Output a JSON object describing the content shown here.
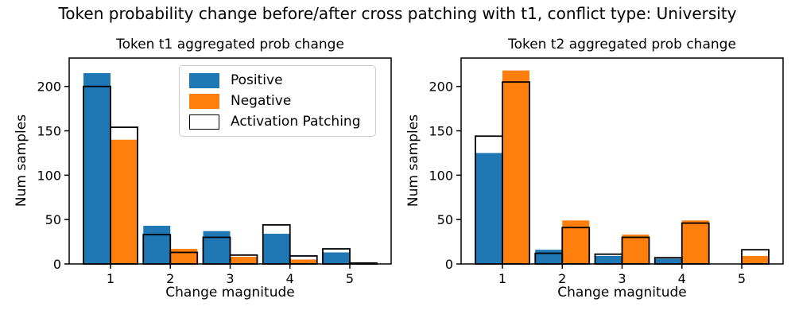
{
  "suptitle": "Token probability change before/after cross patching with t1, conflict type: University",
  "colors": {
    "positive": "#1f77b4",
    "negative": "#ff7f0e",
    "activation_patching_edge": "#000000",
    "axes": "#000000",
    "background": "#ffffff",
    "legend_border": "#cccccc"
  },
  "legend": {
    "items": [
      {
        "label": "Positive"
      },
      {
        "label": "Negative"
      },
      {
        "label": "Activation Patching"
      }
    ]
  },
  "chart_data": [
    {
      "type": "bar",
      "title": "Token t1 aggregated prob change",
      "xlabel": "Change magnitude",
      "ylabel": "Num samples",
      "categories": [
        1,
        2,
        3,
        4,
        5
      ],
      "yticks": [
        0,
        50,
        100,
        150,
        200
      ],
      "ylim": [
        0,
        232
      ],
      "grid": false,
      "legend_position": "upper right inside",
      "series": [
        {
          "name": "Positive",
          "slot": "left",
          "style": "fill",
          "color": "positive",
          "values": [
            215,
            43,
            37,
            34,
            13
          ]
        },
        {
          "name": "Negative",
          "slot": "right",
          "style": "fill",
          "color": "negative",
          "values": [
            140,
            17,
            8,
            5,
            1
          ]
        },
        {
          "name": "Activation Patching",
          "slot": "left",
          "style": "outline",
          "values": [
            200,
            33,
            30,
            44,
            17
          ]
        },
        {
          "name": "Activation Patching",
          "slot": "right",
          "style": "outline",
          "values": [
            154,
            13,
            10,
            9,
            1
          ]
        }
      ]
    },
    {
      "type": "bar",
      "title": "Token t2 aggregated prob change",
      "xlabel": "Change magnitude",
      "ylabel": "Num samples",
      "categories": [
        1,
        2,
        3,
        4,
        5
      ],
      "yticks": [
        0,
        50,
        100,
        150,
        200
      ],
      "ylim": [
        0,
        232
      ],
      "grid": false,
      "series": [
        {
          "name": "Positive",
          "slot": "left",
          "style": "fill",
          "color": "positive",
          "values": [
            125,
            16,
            9,
            6,
            0
          ]
        },
        {
          "name": "Negative",
          "slot": "right",
          "style": "fill",
          "color": "negative",
          "values": [
            218,
            49,
            33,
            49,
            9
          ]
        },
        {
          "name": "Activation Patching",
          "slot": "left",
          "style": "outline",
          "values": [
            144,
            12,
            11,
            7,
            0
          ]
        },
        {
          "name": "Activation Patching",
          "slot": "right",
          "style": "outline",
          "values": [
            205,
            41,
            30,
            46,
            16
          ]
        }
      ]
    }
  ]
}
